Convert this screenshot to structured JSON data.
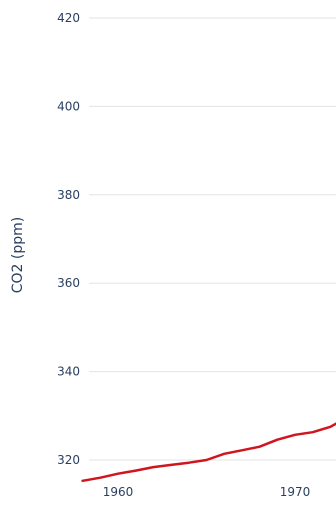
{
  "chart_data": {
    "type": "line",
    "title": "",
    "xlabel": "",
    "ylabel": "CO2 (ppm)",
    "xlim": [
      1958,
      1973
    ],
    "ylim": [
      313,
      420
    ],
    "grid": true,
    "legend": "none",
    "x_ticks": [
      {
        "value": 1960,
        "label": "1960"
      },
      {
        "value": 1970,
        "label": "1970"
      }
    ],
    "y_ticks": [
      {
        "value": 320,
        "label": "320"
      },
      {
        "value": 340,
        "label": "340"
      },
      {
        "value": 360,
        "label": "360"
      },
      {
        "value": 380,
        "label": "380"
      },
      {
        "value": 400,
        "label": "400"
      },
      {
        "value": 420,
        "label": "420"
      }
    ],
    "series": [
      {
        "color": "#d0151f",
        "x": [
          1958,
          1959,
          1960,
          1961,
          1962,
          1963,
          1964,
          1965,
          1966,
          1967,
          1968,
          1969,
          1970,
          1971,
          1972,
          1973
        ],
        "y": [
          315.3,
          316.0,
          316.9,
          317.6,
          318.4,
          318.9,
          319.4,
          320.0,
          321.4,
          322.2,
          323.0,
          324.6,
          325.7,
          326.3,
          327.5,
          329.7
        ]
      }
    ]
  }
}
